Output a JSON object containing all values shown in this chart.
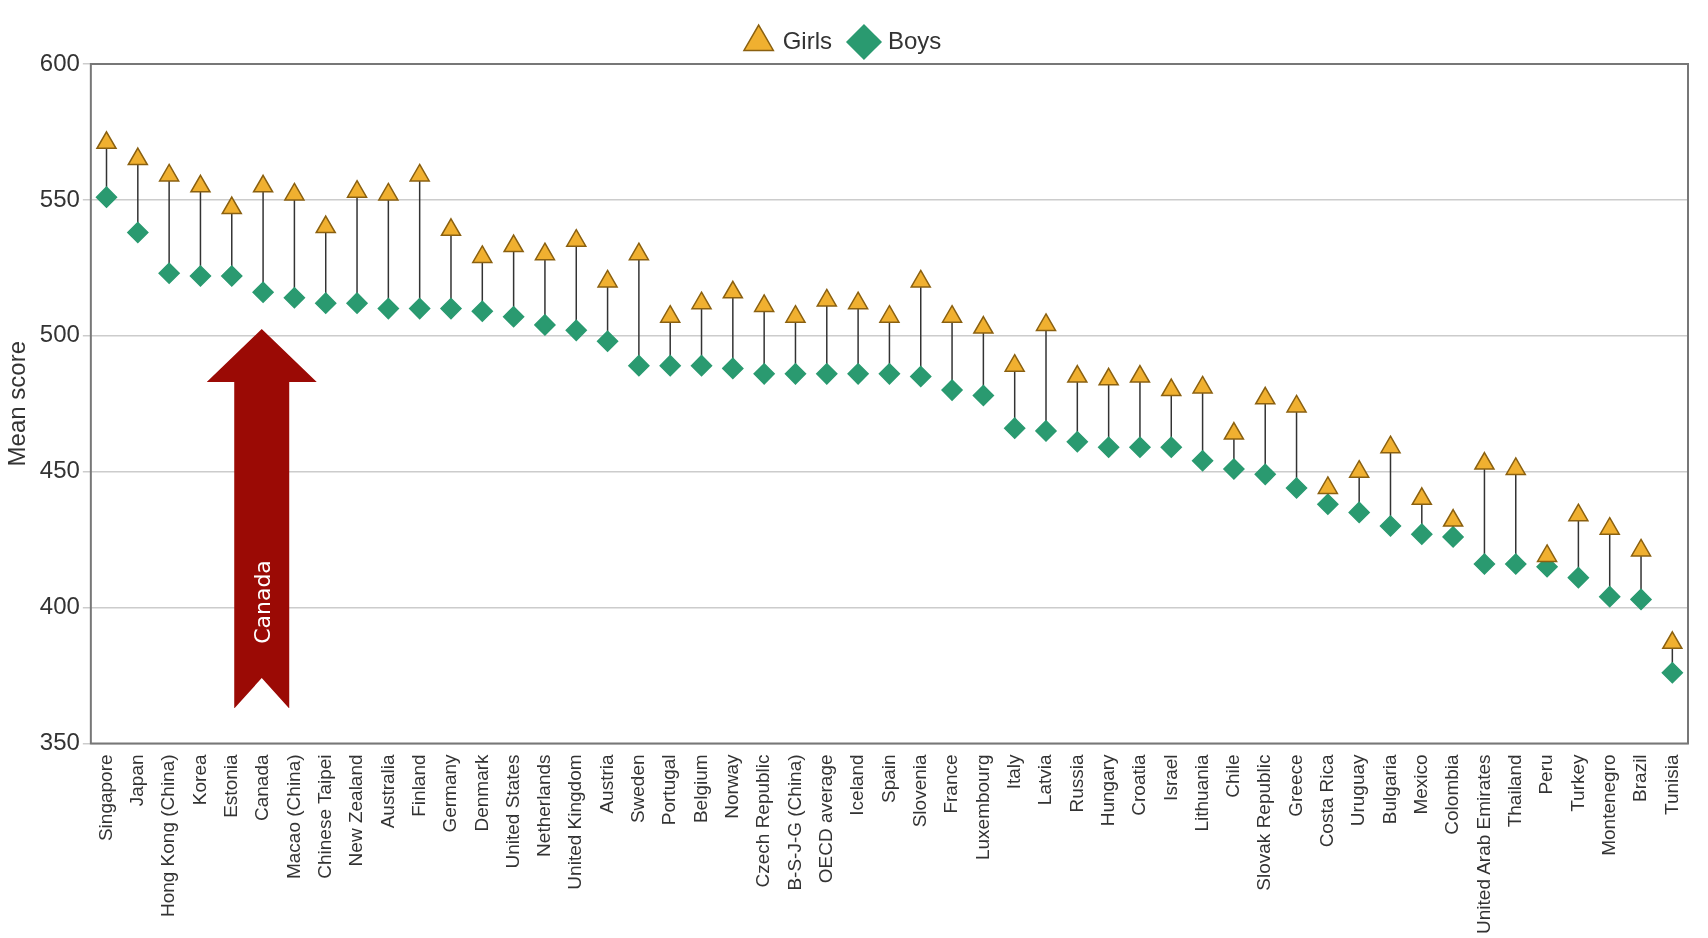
{
  "chart_data": {
    "type": "scatter",
    "ylabel": "Mean score",
    "categories": [
      "Singapore",
      "Japan",
      "Hong Kong (China)",
      "Korea",
      "Estonia",
      "Canada",
      "Macao (China)",
      "Chinese Taipei",
      "New Zealand",
      "Australia",
      "Finland",
      "Germany",
      "Denmark",
      "United States",
      "Netherlands",
      "United Kingdom",
      "Austria",
      "Sweden",
      "Portugal",
      "Belgium",
      "Norway",
      "Czech Republic",
      "B-S-J-G (China)",
      "OECD average",
      "Iceland",
      "Spain",
      "Slovenia",
      "France",
      "Luxembourg",
      "Italy",
      "Latvia",
      "Russia",
      "Hungary",
      "Croatia",
      "Israel",
      "Lithuania",
      "Chile",
      "Slovak Republic",
      "Greece",
      "Costa Rica",
      "Uruguay",
      "Bulgaria",
      "Mexico",
      "Colombia",
      "United Arab Emirates",
      "Thailand",
      "Peru",
      "Turkey",
      "Montenegro",
      "Brazil",
      "Tunisia"
    ],
    "series": [
      {
        "name": "Girls",
        "color": "#f0b030",
        "marker": "triangle",
        "values": [
          571,
          565,
          559,
          555,
          547,
          555,
          552,
          540,
          553,
          552,
          559,
          539,
          529,
          533,
          530,
          535,
          520,
          530,
          507,
          512,
          516,
          511,
          507,
          513,
          512,
          507,
          520,
          507,
          503,
          489,
          504,
          485,
          484,
          485,
          480,
          481,
          464,
          477,
          474,
          444,
          450,
          459,
          440,
          432,
          453,
          451,
          419,
          434,
          429,
          421,
          387
        ]
      },
      {
        "name": "Boys",
        "color": "#2a9a70",
        "marker": "diamond",
        "values": [
          551,
          538,
          523,
          522,
          522,
          516,
          514,
          512,
          512,
          510,
          510,
          510,
          509,
          507,
          504,
          502,
          498,
          489,
          489,
          489,
          488,
          486,
          486,
          486,
          486,
          486,
          485,
          480,
          478,
          466,
          465,
          461,
          459,
          459,
          459,
          454,
          451,
          449,
          444,
          438,
          435,
          430,
          427,
          426,
          416,
          416,
          415,
          411,
          404,
          403,
          376
        ]
      }
    ],
    "ylim": [
      350,
      600
    ],
    "yticks": [
      350,
      400,
      450,
      500,
      550,
      600
    ],
    "grid": "y",
    "legend": "top",
    "annotations": [
      "Canada"
    ]
  }
}
